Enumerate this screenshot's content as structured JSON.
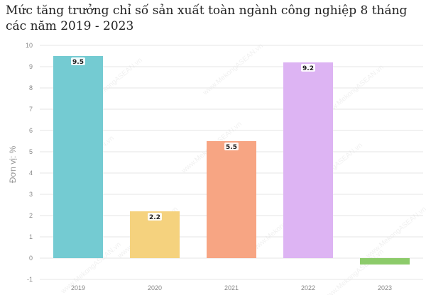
{
  "title": "Mức tăng trưởng chỉ số sản xuất toàn ngành công nghiệp 8 tháng các năm 2019 - 2023",
  "watermark": "www.MekongASEAN.vn",
  "chart_data": {
    "type": "bar",
    "categories": [
      "2019",
      "2020",
      "2021",
      "2022",
      "2023"
    ],
    "values": [
      9.5,
      2.2,
      5.5,
      9.2,
      -0.3
    ],
    "data_labels": [
      "9.5",
      "2.2",
      "5.5",
      "9.2",
      ""
    ],
    "colors": [
      "#74CBD2",
      "#F5D27E",
      "#F7A583",
      "#DDB4F3",
      "#8CCB6A"
    ],
    "ylabel": "Đơn vị: %",
    "xlabel": "",
    "ylim": [
      -1,
      10
    ],
    "yticks": [
      -1,
      0,
      1,
      2,
      3,
      4,
      5,
      6,
      7,
      8,
      9,
      10
    ],
    "grid": true
  }
}
